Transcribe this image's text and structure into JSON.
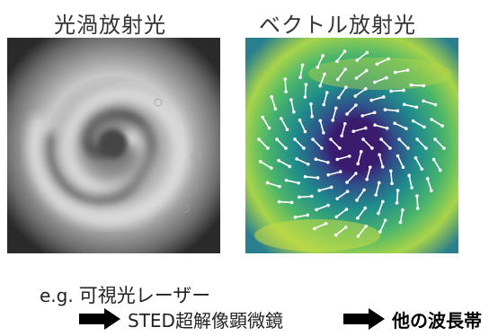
{
  "titles": {
    "left": "光渦放射光",
    "right": "ベクトル放射光"
  },
  "example": {
    "prefix": "e.g.",
    "text": "可視光レーザー"
  },
  "flow": {
    "step1": "STED超解像顕微鏡",
    "step2": "他の波長帯"
  },
  "icons": {
    "arrow": "right-arrow-icon"
  },
  "colors": {
    "text": "#222222",
    "viridis_low": "#3b1b6e",
    "viridis_high": "#d8e23a"
  }
}
